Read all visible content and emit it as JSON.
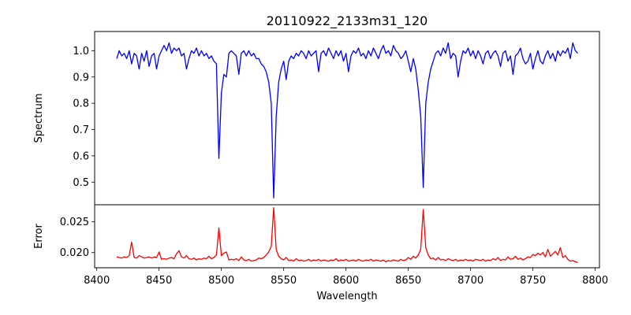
{
  "chart_data": {
    "type": "line",
    "title": "20110922_2133m31_120",
    "xlabel": "Wavelength",
    "xlim": [
      8398.3,
      8803.4
    ],
    "xticks": [
      8400,
      8450,
      8500,
      8550,
      8600,
      8650,
      8700,
      8750,
      8800
    ],
    "x_start": 8416,
    "x_step": 2,
    "panels": [
      {
        "name": "spectrum",
        "ylabel": "Spectrum",
        "ylim": [
          0.414,
          1.073
        ],
        "yticks": [
          0.5,
          0.6,
          0.7,
          0.8,
          0.9,
          1.0
        ],
        "ytick_labels": [
          "0.5",
          "0.6",
          "0.7",
          "0.8",
          "0.9",
          "1.0"
        ],
        "color": "#0000ff",
        "values": [
          0.97,
          1.0,
          0.98,
          0.99,
          0.97,
          1.0,
          0.95,
          0.99,
          0.98,
          0.93,
          0.99,
          0.96,
          1.0,
          0.94,
          0.98,
          0.99,
          0.93,
          0.98,
          1.0,
          1.02,
          1.0,
          1.03,
          0.99,
          1.01,
          1.0,
          1.01,
          0.98,
          0.99,
          0.93,
          0.97,
          1.0,
          0.99,
          1.01,
          0.98,
          1.0,
          0.98,
          0.99,
          0.97,
          0.98,
          0.96,
          0.95,
          0.59,
          0.84,
          0.91,
          0.9,
          0.99,
          1.0,
          0.99,
          0.98,
          0.91,
          0.99,
          1.0,
          0.98,
          1.0,
          0.98,
          0.99,
          0.97,
          0.97,
          0.95,
          0.94,
          0.92,
          0.88,
          0.8,
          0.44,
          0.75,
          0.88,
          0.93,
          0.96,
          0.89,
          0.96,
          0.98,
          0.97,
          0.99,
          0.98,
          1.0,
          0.99,
          0.97,
          1.0,
          0.98,
          0.99,
          1.0,
          0.92,
          0.99,
          1.0,
          0.98,
          1.01,
          0.99,
          0.97,
          1.0,
          0.98,
          1.0,
          0.96,
          0.99,
          0.92,
          0.98,
          1.0,
          0.99,
          1.01,
          0.98,
          0.99,
          0.97,
          1.0,
          0.98,
          1.01,
          0.99,
          0.97,
          1.0,
          1.02,
          0.99,
          1.0,
          0.98,
          1.02,
          1.0,
          0.99,
          0.97,
          0.98,
          1.0,
          0.96,
          0.92,
          0.97,
          0.93,
          0.85,
          0.75,
          0.48,
          0.8,
          0.88,
          0.93,
          0.96,
          0.99,
          1.0,
          0.98,
          1.01,
          0.99,
          1.03,
          0.97,
          0.99,
          0.98,
          0.9,
          0.96,
          1.0,
          0.99,
          1.01,
          0.98,
          1.0,
          0.97,
          1.0,
          0.98,
          0.95,
          0.99,
          1.0,
          0.97,
          0.99,
          1.0,
          0.98,
          0.94,
          0.99,
          1.0,
          0.96,
          0.98,
          0.91,
          0.98,
          0.99,
          1.01,
          0.97,
          0.95,
          0.96,
          0.99,
          0.93,
          0.97,
          1.0,
          0.96,
          0.95,
          0.98,
          1.0,
          0.97,
          0.99,
          0.96,
          1.0,
          0.98,
          1.0,
          0.99,
          1.01,
          0.97,
          1.03,
          1.0,
          0.99
        ]
      },
      {
        "name": "error",
        "ylabel": "Error",
        "ylim": [
          0.01753,
          0.02778
        ],
        "yticks": [
          0.02,
          0.025
        ],
        "ytick_labels": [
          "0.020",
          "0.025"
        ],
        "color": "#ff0000",
        "values": [
          0.0193,
          0.0192,
          0.0191,
          0.0193,
          0.0192,
          0.0195,
          0.0217,
          0.0192,
          0.0191,
          0.0195,
          0.0193,
          0.0191,
          0.0192,
          0.0193,
          0.0191,
          0.0193,
          0.0192,
          0.0201,
          0.0189,
          0.019,
          0.0189,
          0.0191,
          0.0192,
          0.019,
          0.0198,
          0.0203,
          0.0193,
          0.0191,
          0.0195,
          0.019,
          0.0189,
          0.0191,
          0.0188,
          0.019,
          0.0189,
          0.0191,
          0.019,
          0.0194,
          0.019,
          0.0192,
          0.0196,
          0.024,
          0.0195,
          0.0199,
          0.0201,
          0.0188,
          0.0189,
          0.0188,
          0.019,
          0.0187,
          0.0193,
          0.0188,
          0.0187,
          0.0189,
          0.0186,
          0.0187,
          0.0188,
          0.0191,
          0.019,
          0.0192,
          0.0196,
          0.0201,
          0.021,
          0.0273,
          0.0205,
          0.0194,
          0.019,
          0.0188,
          0.0192,
          0.0187,
          0.0188,
          0.0186,
          0.019,
          0.0187,
          0.0188,
          0.0186,
          0.0187,
          0.0189,
          0.0186,
          0.0188,
          0.0187,
          0.0189,
          0.0186,
          0.0188,
          0.0187,
          0.0186,
          0.0188,
          0.0187,
          0.019,
          0.0186,
          0.0188,
          0.0187,
          0.0189,
          0.0186,
          0.0187,
          0.0188,
          0.0186,
          0.0189,
          0.0187,
          0.0186,
          0.0188,
          0.0187,
          0.0189,
          0.0186,
          0.0188,
          0.0187,
          0.0186,
          0.0188,
          0.0185,
          0.0187,
          0.0186,
          0.0188,
          0.0187,
          0.0186,
          0.0189,
          0.0187,
          0.0188,
          0.0192,
          0.0189,
          0.0194,
          0.0191,
          0.0196,
          0.0205,
          0.027,
          0.0208,
          0.0196,
          0.019,
          0.0191,
          0.0188,
          0.0192,
          0.0188,
          0.0189,
          0.0187,
          0.019,
          0.0188,
          0.0187,
          0.0189,
          0.0186,
          0.0188,
          0.0187,
          0.0189,
          0.0187,
          0.0188,
          0.0186,
          0.0189,
          0.0188,
          0.0187,
          0.0189,
          0.0186,
          0.0188,
          0.0187,
          0.019,
          0.0188,
          0.0192,
          0.0187,
          0.0189,
          0.0188,
          0.0193,
          0.0189,
          0.019,
          0.0194,
          0.0189,
          0.0191,
          0.0188,
          0.019,
          0.0193,
          0.0192,
          0.0197,
          0.0195,
          0.0199,
          0.0196,
          0.02,
          0.0193,
          0.0205,
          0.0194,
          0.0198,
          0.0202,
          0.0196,
          0.0208,
          0.0192,
          0.0195,
          0.0189,
          0.0186,
          0.0187,
          0.0185,
          0.0184
        ]
      }
    ]
  }
}
